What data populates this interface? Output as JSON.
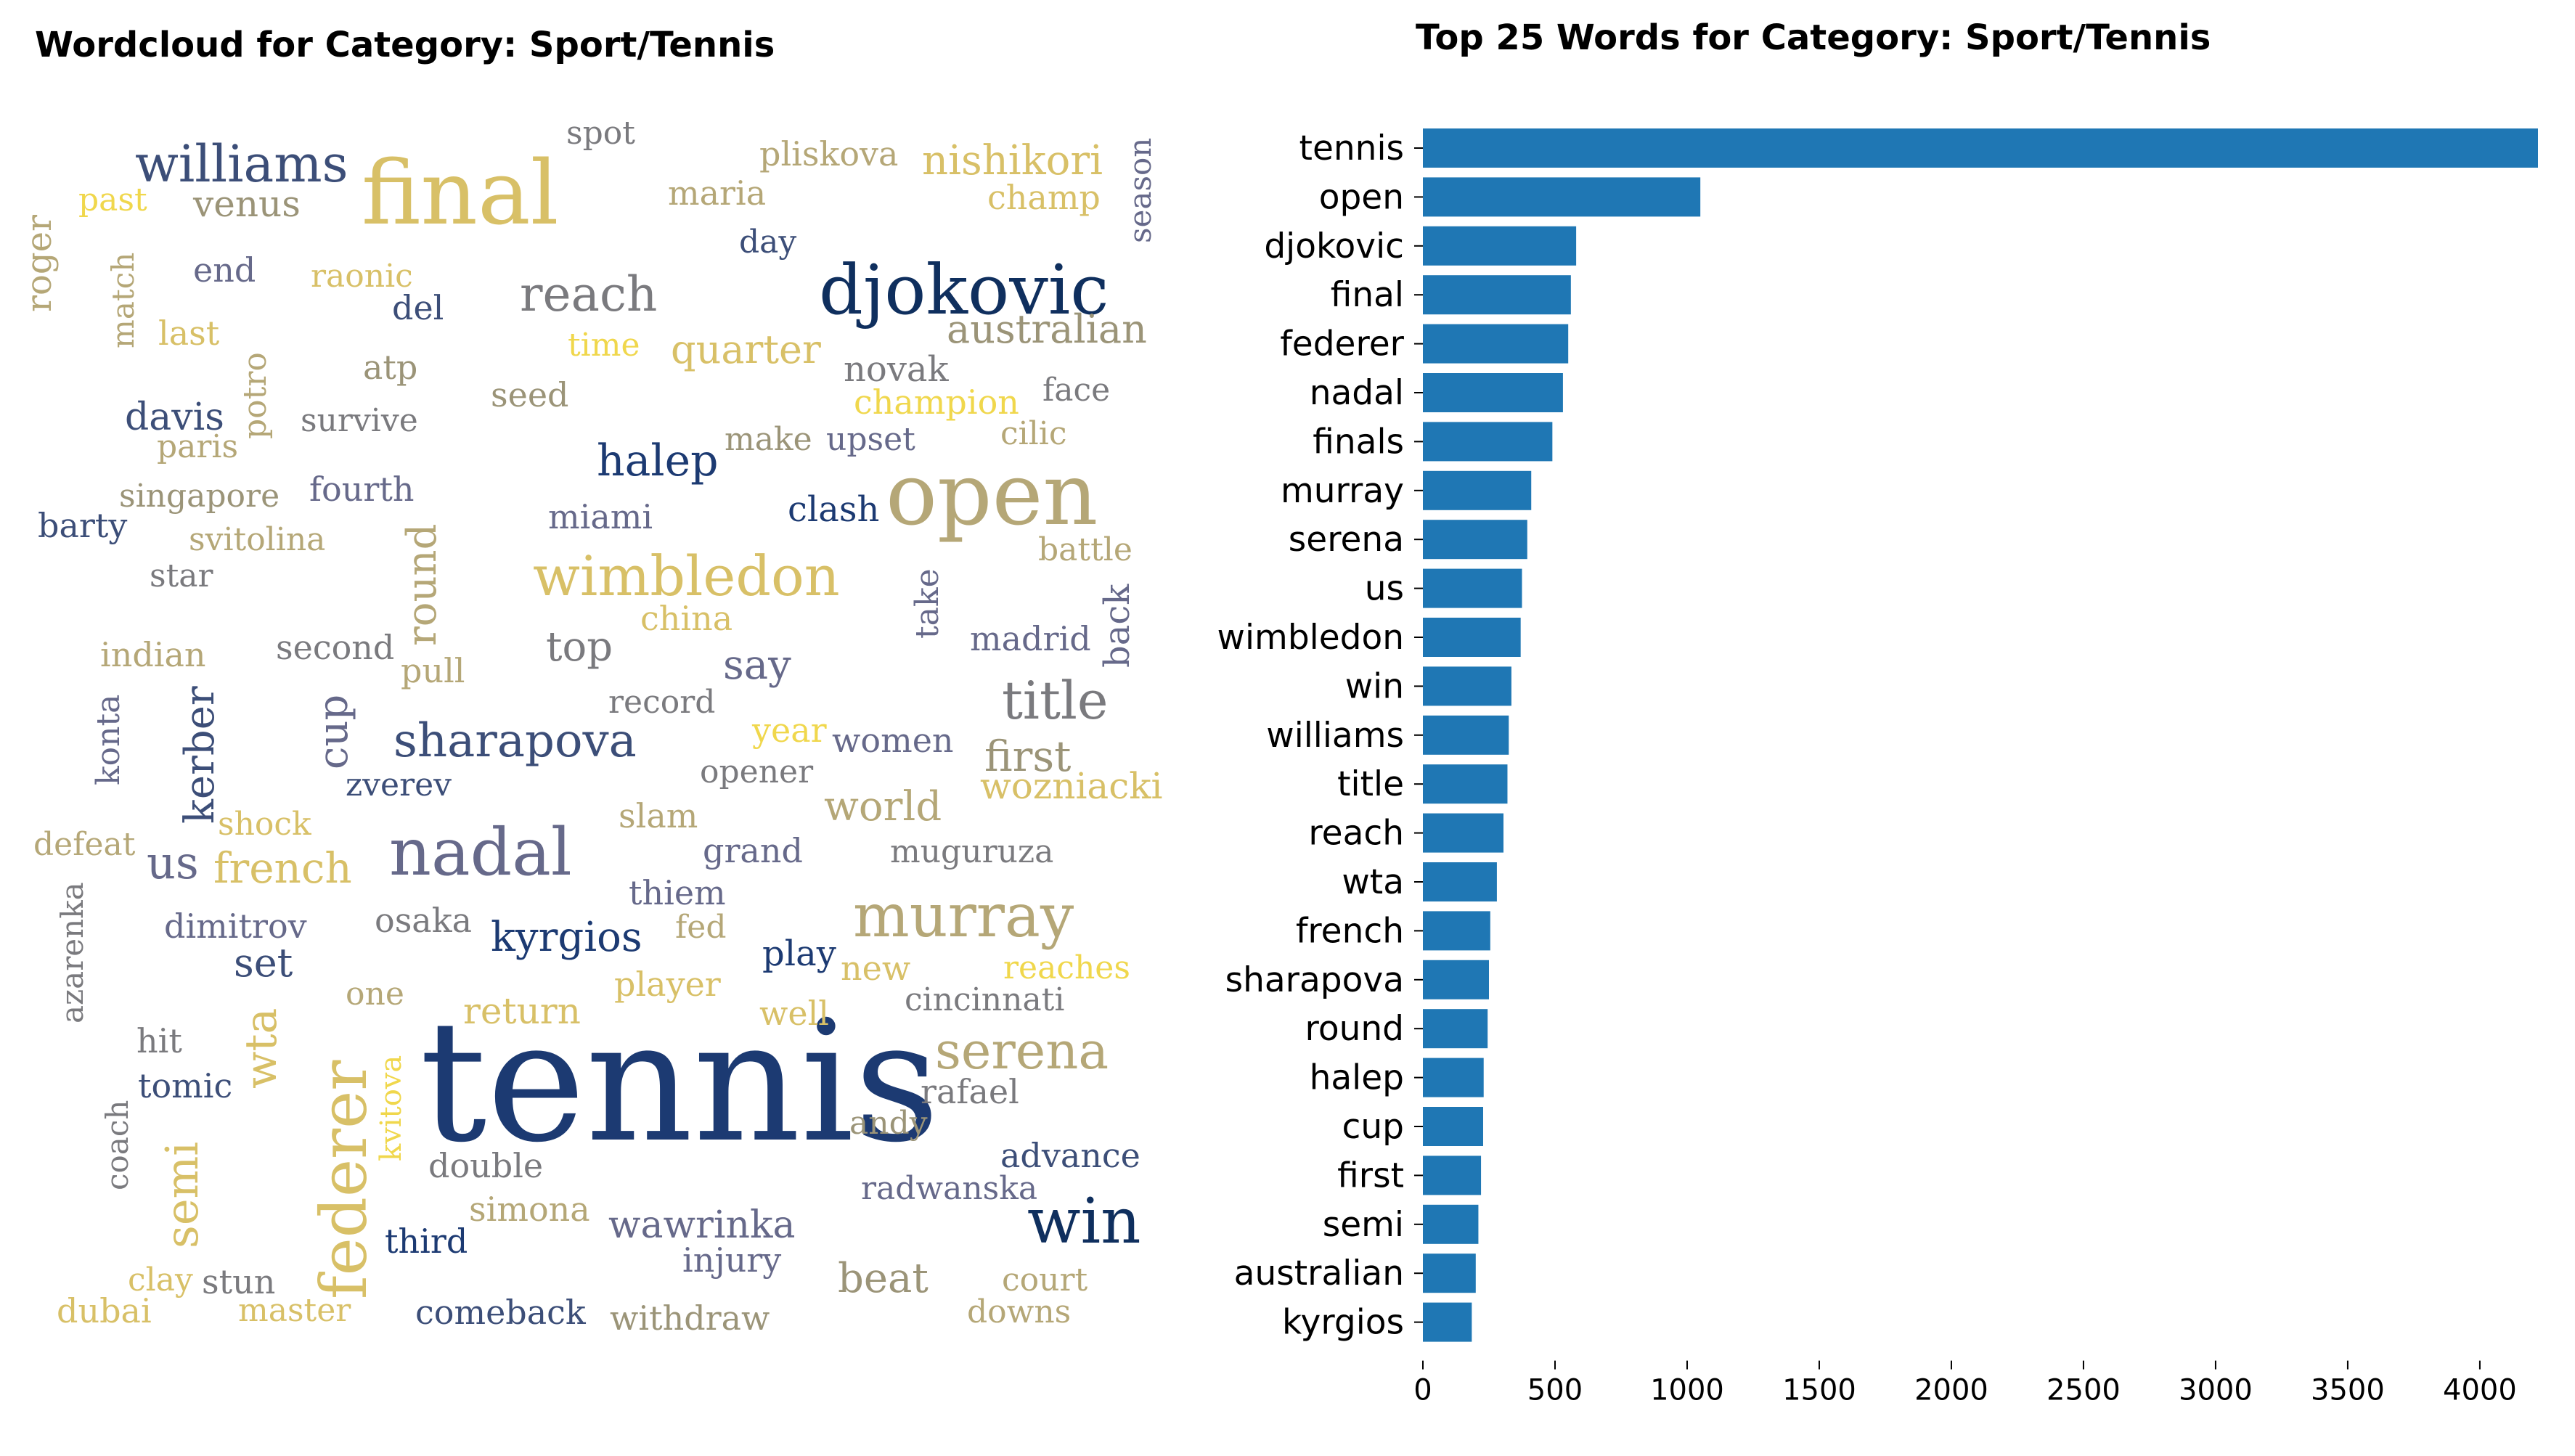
{
  "wordcloud": {
    "title": "Wordcloud for Category: Sport/Tennis",
    "colors": {
      "navy": "#1c3a72",
      "dark": "#0f2f5e",
      "blue": "#3c4e78",
      "slate": "#66698a",
      "gray": "#7a7a7e",
      "taupe": "#9b9478",
      "khaki": "#b5a777",
      "gold": "#d8c067",
      "yellow": "#f0d74c"
    },
    "words": [
      {
        "text": "tennis",
        "color": "navy"
      },
      {
        "text": "final",
        "color": "gold"
      },
      {
        "text": "djokovic",
        "color": "dark"
      },
      {
        "text": "open",
        "color": "khaki"
      },
      {
        "text": "nadal",
        "color": "slate"
      },
      {
        "text": "murray",
        "color": "khaki"
      },
      {
        "text": "williams",
        "color": "blue"
      },
      {
        "text": "wimbledon",
        "color": "gold"
      },
      {
        "text": "federer",
        "color": "gold"
      },
      {
        "text": "win",
        "color": "dark"
      },
      {
        "text": "serena",
        "color": "khaki"
      },
      {
        "text": "sharapova",
        "color": "blue"
      },
      {
        "text": "reach",
        "color": "gray"
      },
      {
        "text": "title",
        "color": "gray"
      },
      {
        "text": "halep",
        "color": "navy"
      },
      {
        "text": "us",
        "color": "slate"
      },
      {
        "text": "kyrgios",
        "color": "navy"
      },
      {
        "text": "french",
        "color": "gold"
      },
      {
        "text": "semi",
        "color": "gold"
      },
      {
        "text": "round",
        "color": "khaki"
      },
      {
        "text": "wta",
        "color": "gold"
      },
      {
        "text": "cup",
        "color": "slate"
      },
      {
        "text": "first",
        "color": "taupe"
      },
      {
        "text": "australian",
        "color": "taupe"
      },
      {
        "text": "quarter",
        "color": "gold"
      },
      {
        "text": "kerber",
        "color": "blue"
      },
      {
        "text": "wawrinka",
        "color": "slate"
      },
      {
        "text": "world",
        "color": "khaki"
      },
      {
        "text": "nishikori",
        "color": "gold"
      },
      {
        "text": "say",
        "color": "slate"
      },
      {
        "text": "top",
        "color": "gray"
      },
      {
        "text": "set",
        "color": "blue"
      },
      {
        "text": "beat",
        "color": "taupe"
      },
      {
        "text": "pliskova",
        "color": "khaki"
      },
      {
        "text": "wozniacki",
        "color": "gold"
      },
      {
        "text": "return",
        "color": "gold"
      },
      {
        "text": "clash",
        "color": "navy"
      },
      {
        "text": "novak",
        "color": "gray"
      },
      {
        "text": "champion",
        "color": "yellow"
      },
      {
        "text": "roger",
        "color": "khaki"
      },
      {
        "text": "venus",
        "color": "taupe"
      },
      {
        "text": "past",
        "color": "yellow"
      },
      {
        "text": "spot",
        "color": "gray"
      },
      {
        "text": "maria",
        "color": "khaki"
      },
      {
        "text": "champ",
        "color": "gold"
      },
      {
        "text": "season",
        "color": "slate"
      },
      {
        "text": "day",
        "color": "blue"
      },
      {
        "text": "end",
        "color": "slate"
      },
      {
        "text": "raonic",
        "color": "gold"
      },
      {
        "text": "del",
        "color": "blue"
      },
      {
        "text": "last",
        "color": "gold"
      },
      {
        "text": "match",
        "color": "khaki"
      },
      {
        "text": "potro",
        "color": "khaki"
      },
      {
        "text": "atp",
        "color": "taupe"
      },
      {
        "text": "time",
        "color": "yellow"
      },
      {
        "text": "seed",
        "color": "taupe"
      },
      {
        "text": "face",
        "color": "gray"
      },
      {
        "text": "davis",
        "color": "blue"
      },
      {
        "text": "paris",
        "color": "khaki"
      },
      {
        "text": "survive",
        "color": "gray"
      },
      {
        "text": "make",
        "color": "taupe"
      },
      {
        "text": "upset",
        "color": "slate"
      },
      {
        "text": "cilic",
        "color": "khaki"
      },
      {
        "text": "singapore",
        "color": "taupe"
      },
      {
        "text": "fourth",
        "color": "slate"
      },
      {
        "text": "barty",
        "color": "blue"
      },
      {
        "text": "svitolina",
        "color": "khaki"
      },
      {
        "text": "miami",
        "color": "slate"
      },
      {
        "text": "battle",
        "color": "khaki"
      },
      {
        "text": "star",
        "color": "gray"
      },
      {
        "text": "china",
        "color": "gold"
      },
      {
        "text": "take",
        "color": "slate"
      },
      {
        "text": "madrid",
        "color": "slate"
      },
      {
        "text": "back",
        "color": "slate"
      },
      {
        "text": "indian",
        "color": "khaki"
      },
      {
        "text": "second",
        "color": "gray"
      },
      {
        "text": "pull",
        "color": "khaki"
      },
      {
        "text": "record",
        "color": "gray"
      },
      {
        "text": "konta",
        "color": "slate"
      },
      {
        "text": "year",
        "color": "yellow"
      },
      {
        "text": "women",
        "color": "slate"
      },
      {
        "text": "zverev",
        "color": "blue"
      },
      {
        "text": "opener",
        "color": "gray"
      },
      {
        "text": "shock",
        "color": "gold"
      },
      {
        "text": "slam",
        "color": "khaki"
      },
      {
        "text": "defeat",
        "color": "khaki"
      },
      {
        "text": "grand",
        "color": "slate"
      },
      {
        "text": "muguruza",
        "color": "gray"
      },
      {
        "text": "azarenka",
        "color": "gray"
      },
      {
        "text": "thiem",
        "color": "slate"
      },
      {
        "text": "fed",
        "color": "khaki"
      },
      {
        "text": "dimitrov",
        "color": "slate"
      },
      {
        "text": "osaka",
        "color": "gray"
      },
      {
        "text": "play",
        "color": "navy"
      },
      {
        "text": "new",
        "color": "gold"
      },
      {
        "text": "reaches",
        "color": "yellow"
      },
      {
        "text": "one",
        "color": "khaki"
      },
      {
        "text": "player",
        "color": "gold"
      },
      {
        "text": "cincinnati",
        "color": "gray"
      },
      {
        "text": "well",
        "color": "gold"
      },
      {
        "text": "hit",
        "color": "gray"
      },
      {
        "text": "rafael",
        "color": "gray"
      },
      {
        "text": "tomic",
        "color": "blue"
      },
      {
        "text": "kvitova",
        "color": "yellow"
      },
      {
        "text": "andy",
        "color": "taupe"
      },
      {
        "text": "coach",
        "color": "gray"
      },
      {
        "text": "double",
        "color": "gray"
      },
      {
        "text": "advance",
        "color": "blue"
      },
      {
        "text": "simona",
        "color": "khaki"
      },
      {
        "text": "radwanska",
        "color": "slate"
      },
      {
        "text": "third",
        "color": "navy"
      },
      {
        "text": "injury",
        "color": "slate"
      },
      {
        "text": "clay",
        "color": "gold"
      },
      {
        "text": "stun",
        "color": "gray"
      },
      {
        "text": "court",
        "color": "khaki"
      },
      {
        "text": "dubai",
        "color": "gold"
      },
      {
        "text": "master",
        "color": "gold"
      },
      {
        "text": "comeback",
        "color": "blue"
      },
      {
        "text": "withdraw",
        "color": "taupe"
      },
      {
        "text": "downs",
        "color": "khaki"
      }
    ]
  },
  "chart_data": {
    "type": "bar",
    "orientation": "horizontal",
    "title": "Top 25 Words for Category: Sport/Tennis",
    "xlabel": "",
    "ylabel": "",
    "categories": [
      "tennis",
      "open",
      "djokovic",
      "final",
      "federer",
      "nadal",
      "finals",
      "murray",
      "serena",
      "us",
      "wimbledon",
      "win",
      "williams",
      "title",
      "reach",
      "wta",
      "french",
      "sharapova",
      "round",
      "halep",
      "cup",
      "first",
      "semi",
      "australian",
      "kyrgios"
    ],
    "values": [
      4220,
      1050,
      580,
      560,
      550,
      530,
      490,
      410,
      395,
      375,
      370,
      335,
      325,
      320,
      305,
      280,
      255,
      250,
      245,
      230,
      228,
      220,
      210,
      200,
      185
    ],
    "xticks": [
      "0",
      "500",
      "1000",
      "1500",
      "2000",
      "2500",
      "3000",
      "3500",
      "4000"
    ],
    "xlim": [
      0,
      4220
    ],
    "bar_color": "#1f77b4",
    "grid": false
  }
}
